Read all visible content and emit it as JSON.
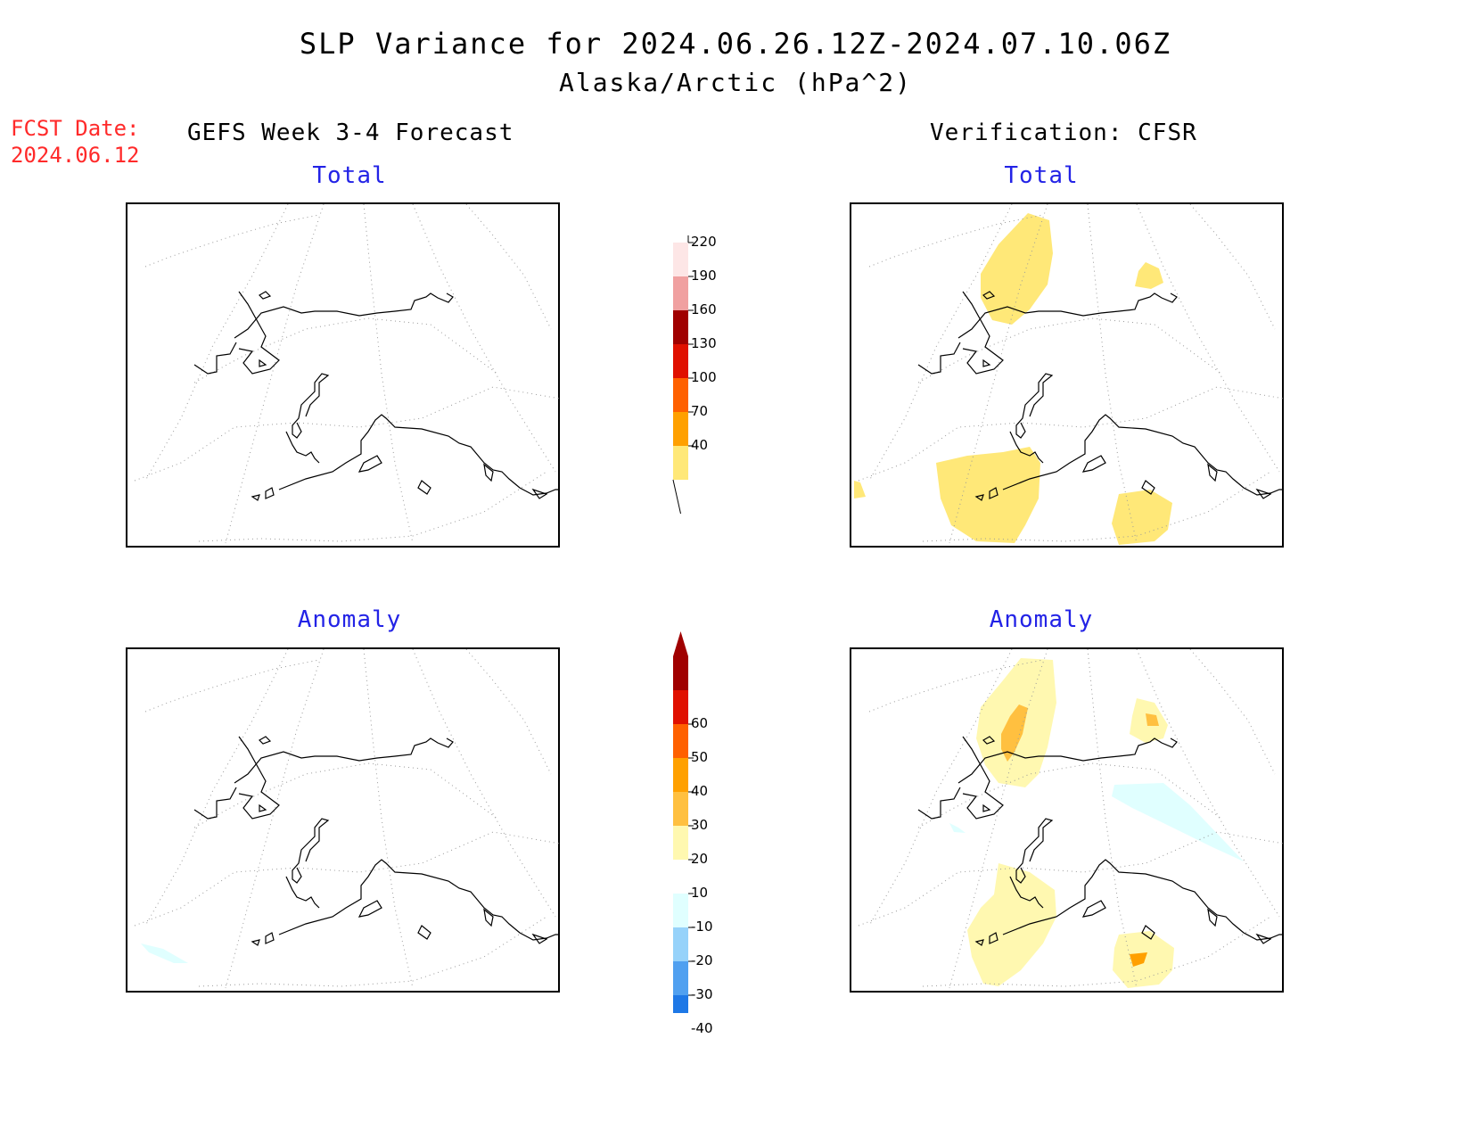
{
  "title": {
    "line1": "SLP Variance for 2024.06.26.12Z-2024.07.10.06Z",
    "line2": "Alaska/Arctic (hPa^2)"
  },
  "fcst_date": {
    "label": "FCST Date:",
    "value": "2024.06.12"
  },
  "columns": {
    "left": "GEFS Week 3-4 Forecast",
    "right": "Verification: CFSR"
  },
  "panels": {
    "forecast_total": {
      "label": "Total"
    },
    "verification_total": {
      "label": "Total"
    },
    "forecast_anomaly": {
      "label": "Anomaly"
    },
    "verification_anomaly": {
      "label": "Anomaly"
    }
  },
  "colorbars": {
    "total": {
      "levels": [
        "40",
        "70",
        "100",
        "130",
        "160",
        "190",
        "220"
      ],
      "colors": [
        "#ffe878",
        "#ffa000",
        "#ff6000",
        "#e01000",
        "#a00000",
        "#f0a0a0",
        "#fde6e6"
      ]
    },
    "anomaly": {
      "levels": [
        "-40",
        "-30",
        "-20",
        "-10",
        "10",
        "20",
        "30",
        "40",
        "50",
        "60"
      ],
      "colors": [
        "#0050d0",
        "#1e78e6",
        "#50a0f0",
        "#96d2fa",
        "#e0ffff",
        "#ffffff",
        "#fff8b0",
        "#ffc040",
        "#ffa000",
        "#ff6000",
        "#e01000",
        "#a00000"
      ]
    }
  }
}
